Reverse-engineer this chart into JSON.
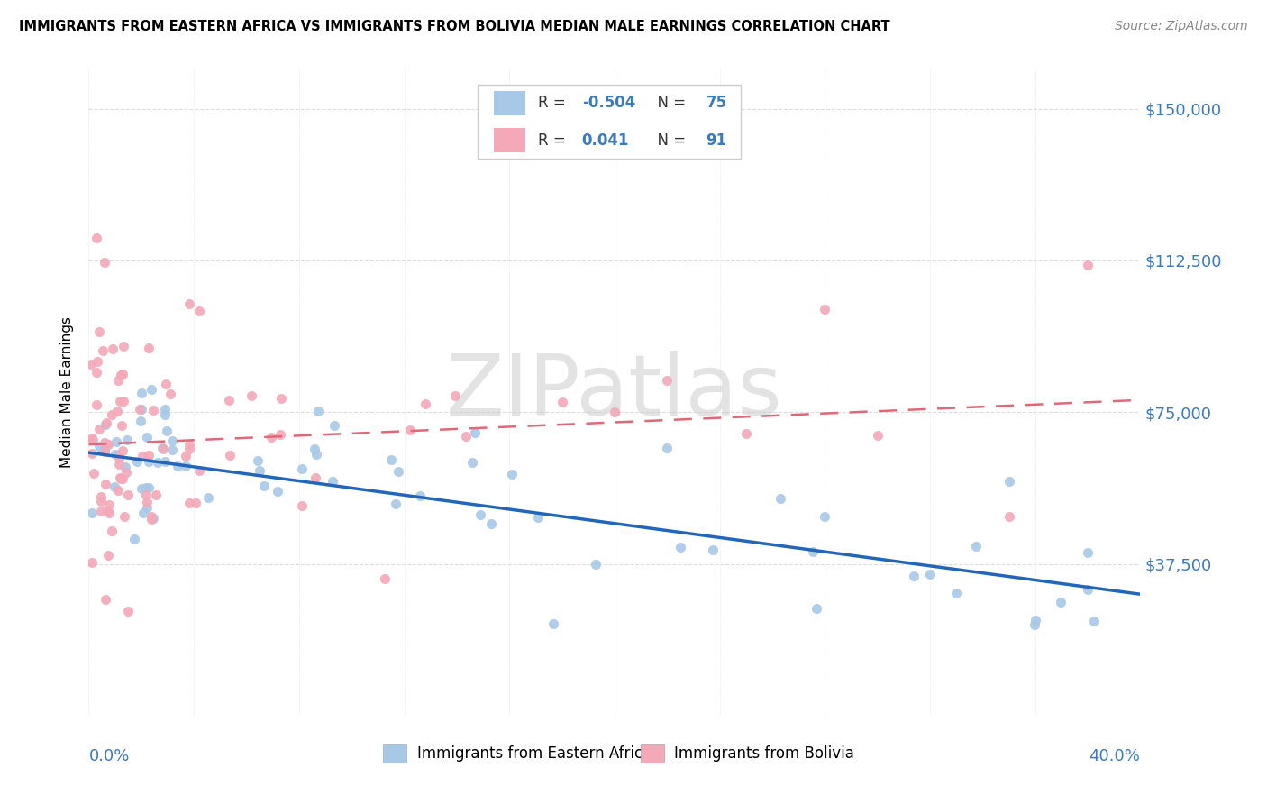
{
  "title": "IMMIGRANTS FROM EASTERN AFRICA VS IMMIGRANTS FROM BOLIVIA MEDIAN MALE EARNINGS CORRELATION CHART",
  "source": "Source: ZipAtlas.com",
  "ylabel": "Median Male Earnings",
  "y_ticks": [
    0,
    37500,
    75000,
    112500,
    150000
  ],
  "y_tick_labels": [
    "",
    "$37,500",
    "$75,000",
    "$112,500",
    "$150,000"
  ],
  "xlim": [
    0.0,
    0.4
  ],
  "ylim": [
    0,
    160000
  ],
  "watermark": "ZIPatlas",
  "series1_scatter_color": "#a8c8e8",
  "series1_line_color": "#2266bb",
  "series2_scatter_color": "#f4a8b8",
  "series2_line_color": "#e06878",
  "legend_series1_color": "#a8c8e8",
  "legend_series2_color": "#f4a8b8",
  "legend_series1_R": "-0.504",
  "legend_series1_N": "75",
  "legend_series2_R": "0.041",
  "legend_series2_N": "91",
  "blue_line_x0": 0.0,
  "blue_line_y0": 65000,
  "blue_line_x1": 0.4,
  "blue_line_y1": 30000,
  "pink_line_x0": 0.0,
  "pink_line_y0": 67000,
  "pink_line_x1": 0.4,
  "pink_line_y1": 78000
}
